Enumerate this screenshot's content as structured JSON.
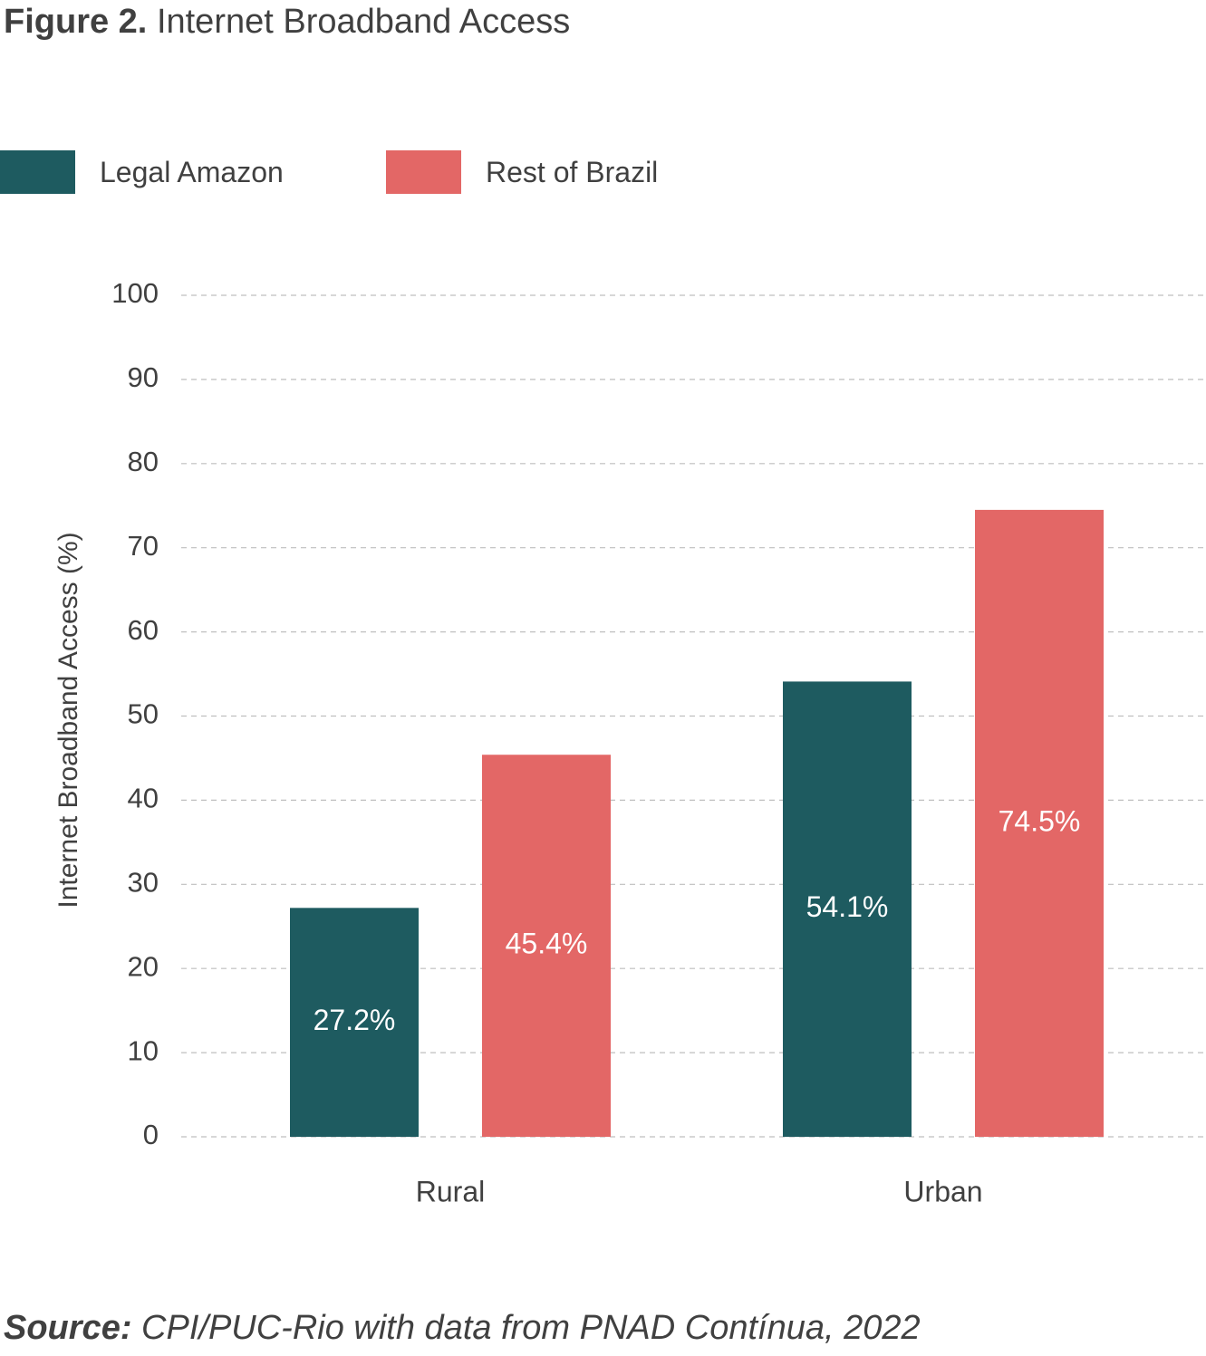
{
  "figure": {
    "label": "Figure 2.",
    "title": "Internet Broadband Access"
  },
  "source": {
    "label": "Source:",
    "text": "CPI/PUC-Rio with data from PNAD Contínua, 2022"
  },
  "colors": {
    "legal_amazon": "#1e5b60",
    "rest_of_brazil": "#e36766",
    "gridline": "#bfbfbf",
    "text": "#404040",
    "data_label": "#ffffff"
  },
  "chart_data": {
    "type": "bar",
    "categories": [
      "Rural",
      "Urban"
    ],
    "series": [
      {
        "name": "Legal Amazon",
        "values": [
          27.2,
          54.1
        ],
        "labels": [
          "27.2%",
          "54.1%"
        ],
        "color": "#1e5b60"
      },
      {
        "name": "Rest of Brazil",
        "values": [
          45.4,
          74.5
        ],
        "labels": [
          "45.4%",
          "74.5%"
        ],
        "color": "#e36766"
      }
    ],
    "ylabel": "Internet Broadband Access (%)",
    "xlabel": "",
    "ylim": [
      0,
      100
    ],
    "yticks": [
      "0",
      "10",
      "20",
      "30",
      "40",
      "50",
      "60",
      "70",
      "80",
      "90",
      "100"
    ],
    "grid": true,
    "legend": "top-left"
  }
}
